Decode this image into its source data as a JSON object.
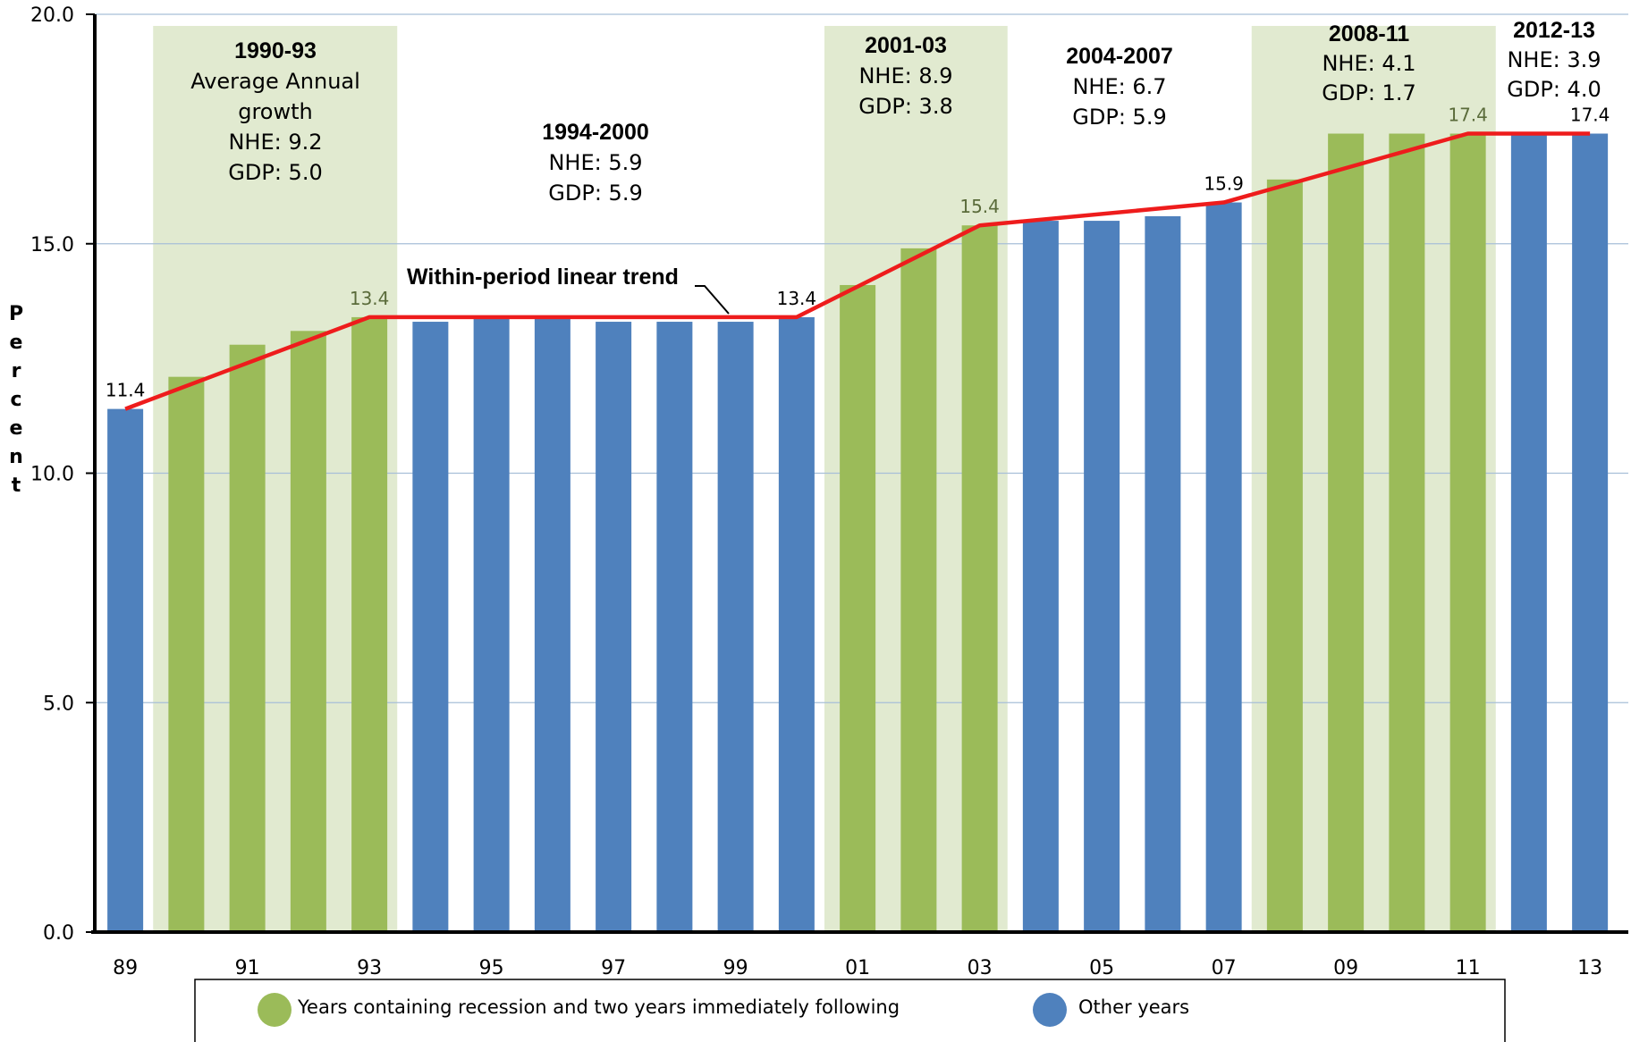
{
  "chart_data": {
    "type": "bar",
    "ylabel": "Percent",
    "ylim": [
      0,
      20
    ],
    "yticks": [
      "0.0",
      "5.0",
      "10.0",
      "15.0",
      "20.0"
    ],
    "grid": true,
    "categories": [
      "89",
      "90",
      "91",
      "92",
      "93",
      "94",
      "95",
      "96",
      "97",
      "98",
      "99",
      "00",
      "01",
      "02",
      "03",
      "04",
      "05",
      "06",
      "07",
      "08",
      "09",
      "10",
      "11",
      "12",
      "13"
    ],
    "xtick_labels": [
      "89",
      "91",
      "93",
      "95",
      "97",
      "99",
      "01",
      "03",
      "05",
      "07",
      "09",
      "11",
      "13"
    ],
    "values": [
      11.4,
      12.1,
      12.8,
      13.1,
      13.4,
      13.3,
      13.4,
      13.4,
      13.3,
      13.3,
      13.3,
      13.4,
      14.1,
      14.9,
      15.4,
      15.5,
      15.5,
      15.6,
      15.9,
      16.4,
      17.4,
      17.4,
      17.4,
      17.4,
      17.4
    ],
    "groups": [
      "other",
      "recession",
      "recession",
      "recession",
      "recession",
      "other",
      "other",
      "other",
      "other",
      "other",
      "other",
      "other",
      "recession",
      "recession",
      "recession",
      "other",
      "other",
      "other",
      "other",
      "recession",
      "recession",
      "recession",
      "recession",
      "other",
      "other"
    ],
    "data_labels": [
      {
        "category": "89",
        "text": "11.4",
        "group": "other"
      },
      {
        "category": "93",
        "text": "13.4",
        "group": "recession"
      },
      {
        "category": "00",
        "text": "13.4",
        "group": "other"
      },
      {
        "category": "03",
        "text": "15.4",
        "group": "recession"
      },
      {
        "category": "07",
        "text": "15.9",
        "group": "other"
      },
      {
        "category": "11",
        "text": "17.4",
        "group": "recession"
      },
      {
        "category": "13",
        "text": "17.4",
        "group": "other"
      }
    ],
    "trend_line": {
      "name": "Within-period linear trend",
      "points": [
        [
          "89",
          11.4
        ],
        [
          "93",
          13.4
        ],
        [
          "00",
          13.4
        ],
        [
          "03",
          15.4
        ],
        [
          "07",
          15.9
        ],
        [
          "11",
          17.4
        ],
        [
          "13",
          17.4
        ]
      ]
    },
    "shaded_periods": [
      {
        "from": "90",
        "to": "93"
      },
      {
        "from": "01",
        "to": "03"
      },
      {
        "from": "08",
        "to": "11"
      }
    ],
    "annotations": [
      {
        "title": "1990-93",
        "lines": [
          "Average Annual",
          "growth",
          "NHE: 9.2",
          "GDP: 5.0"
        ]
      },
      {
        "title": "1994-2000",
        "lines": [
          "NHE: 5.9",
          "GDP: 5.9"
        ]
      },
      {
        "title": "2001-03",
        "lines": [
          "NHE: 8.9",
          "GDP: 3.8"
        ]
      },
      {
        "title": "2004-2007",
        "lines": [
          "NHE: 6.7",
          "GDP: 5.9"
        ]
      },
      {
        "title": "2008-11",
        "lines": [
          "NHE: 4.1",
          "GDP: 1.7"
        ]
      },
      {
        "title": "2012-13",
        "lines": [
          "NHE: 3.9",
          "GDP: 4.0"
        ]
      }
    ],
    "legend": [
      {
        "label": "Years containing recession and two years immediately following",
        "group": "recession"
      },
      {
        "label": "Other years",
        "group": "other"
      }
    ],
    "legend_position": "bottom"
  },
  "colors": {
    "recession_bar": "#9bbb59",
    "other_bar": "#4f81bd",
    "shade": "#e1ead0",
    "trend": "#ee1c1c",
    "grid": "#a7bfd8",
    "recession_label": "#5a6b3a"
  }
}
